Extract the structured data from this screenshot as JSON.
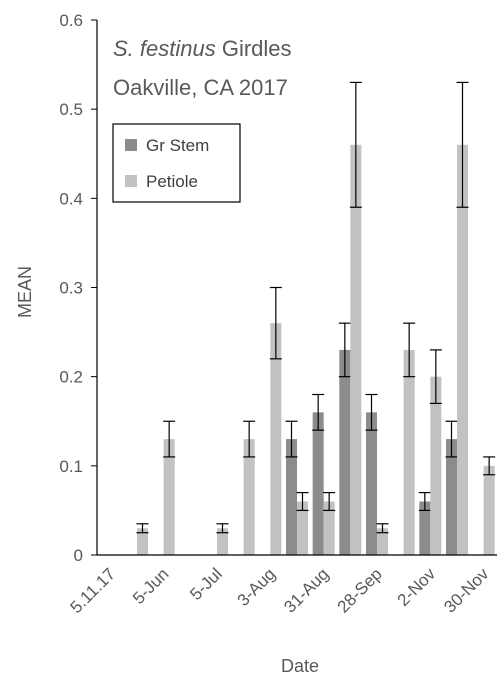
{
  "chart_data": {
    "type": "bar",
    "title_species": "S. festinus",
    "title_rest": " Girdles",
    "subtitle": "Oakville, CA 2017",
    "xlabel": "Date",
    "ylabel": "MEAN",
    "ylim": [
      0,
      0.6
    ],
    "yticks": [
      "0",
      "0.1",
      "0.2",
      "0.3",
      "0.4",
      "0.5",
      "0.6"
    ],
    "categories": [
      "5.11.17",
      "",
      "5-Jun",
      "",
      "5-Jul",
      "",
      "3-Aug",
      "",
      "31-Aug",
      "",
      "28-Sep",
      "",
      "2-Nov",
      "",
      "30-Nov"
    ],
    "tick_labels": [
      "5.11.17",
      "5-Jun",
      "5-Jul",
      "3-Aug",
      "31-Aug",
      "28-Sep",
      "2-Nov",
      "30-Nov"
    ],
    "legend_position": "top-left",
    "grid": false,
    "series": [
      {
        "name": "Gr Stem",
        "color": "#8c8c8c",
        "values": [
          0,
          0,
          0,
          0,
          0,
          0,
          0,
          0.13,
          0.16,
          0.23,
          0.16,
          0,
          0.06,
          0.13,
          0
        ],
        "errors": [
          0,
          0,
          0,
          0,
          0,
          0,
          0,
          0.02,
          0.02,
          0.03,
          0.02,
          0,
          0.01,
          0.02,
          0
        ]
      },
      {
        "name": "Petiole",
        "color": "#c2c2c2",
        "values": [
          0,
          0.03,
          0.13,
          0,
          0.03,
          0.13,
          0.26,
          0.06,
          0.06,
          0.46,
          0.03,
          0.23,
          0.2,
          0.46,
          0.1
        ],
        "errors": [
          0,
          0.005,
          0.02,
          0,
          0.005,
          0.02,
          0.04,
          0.01,
          0.01,
          0.07,
          0.005,
          0.03,
          0.03,
          0.07,
          0.01
        ]
      }
    ]
  }
}
